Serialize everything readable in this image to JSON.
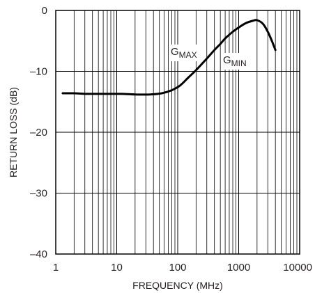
{
  "chart_data": {
    "type": "line",
    "title": "",
    "xlabel": "FREQUENCY (MHz)",
    "ylabel": "RETURN LOSS (dB)",
    "x_scale": "log",
    "xlim": [
      1,
      10000
    ],
    "ylim": [
      -40,
      0
    ],
    "x_ticks": [
      1,
      10,
      100,
      1000,
      10000
    ],
    "x_tick_labels": [
      "1",
      "10",
      "100",
      "1000",
      "10000"
    ],
    "y_ticks": [
      0,
      -10,
      -20,
      -30,
      -40
    ],
    "y_tick_labels": [
      "0",
      "–10",
      "–20",
      "–30",
      "–40"
    ],
    "grid": true,
    "line_color": "#000000",
    "series": [
      {
        "x": [
          1.3,
          2,
          3,
          5,
          8,
          12,
          20,
          35,
          55,
          80,
          110,
          150,
          200,
          300,
          400,
          500,
          600,
          800,
          1000,
          1300,
          1700,
          2000,
          2500,
          3000,
          3500,
          4000
        ],
        "y": [
          -13.6,
          -13.6,
          -13.7,
          -13.7,
          -13.7,
          -13.7,
          -13.8,
          -13.8,
          -13.6,
          -13.1,
          -12.3,
          -11.0,
          -9.8,
          -7.9,
          -6.5,
          -5.5,
          -4.6,
          -3.5,
          -2.8,
          -2.1,
          -1.7,
          -1.6,
          -2.2,
          -3.5,
          -5.0,
          -6.5
        ]
      }
    ],
    "annotations": [
      {
        "main": "G",
        "sub": "MAX"
      },
      {
        "main": "G",
        "sub": "MIN"
      }
    ]
  }
}
